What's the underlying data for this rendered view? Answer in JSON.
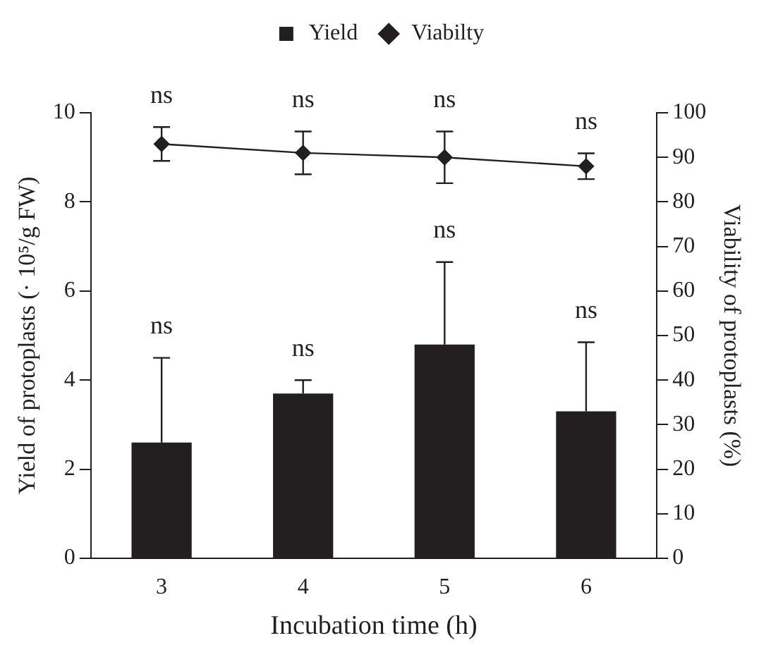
{
  "chart_data": {
    "type": "bar",
    "categories": [
      "3",
      "4",
      "5",
      "6"
    ],
    "xlabel": "Incubation time (h)",
    "ylabel": "Yield of protoplasts (· 10⁵/g FW)",
    "y2label": "Viability of protoplasts (%)",
    "series": [
      {
        "name": "Yield",
        "color": "#231f20",
        "values": [
          2.6,
          3.7,
          4.8,
          3.3
        ],
        "errors": [
          [
            2.6,
            4.5
          ],
          [
            3.7,
            4.0
          ],
          [
            4.8,
            6.65
          ],
          [
            3.3,
            4.85
          ]
        ]
      },
      {
        "name": "Viabilty",
        "type": "line",
        "axis": "y2",
        "color": "#231f20",
        "marker": "diamond",
        "values": [
          93,
          91,
          90,
          88
        ],
        "errors": [
          3.8,
          4.8,
          5.8,
          2.9
        ]
      }
    ],
    "ylim": [
      0,
      10
    ],
    "yticks": [
      0,
      2,
      4,
      6,
      8,
      10
    ],
    "y2lim": [
      0,
      100
    ],
    "y2ticks": [
      0,
      10,
      20,
      30,
      40,
      50,
      60,
      70,
      80,
      90,
      100
    ],
    "legend": "top",
    "grid": false,
    "annotations": [
      "ns",
      "ns",
      "ns",
      "ns",
      "ns",
      "ns",
      "ns",
      "ns"
    ]
  }
}
